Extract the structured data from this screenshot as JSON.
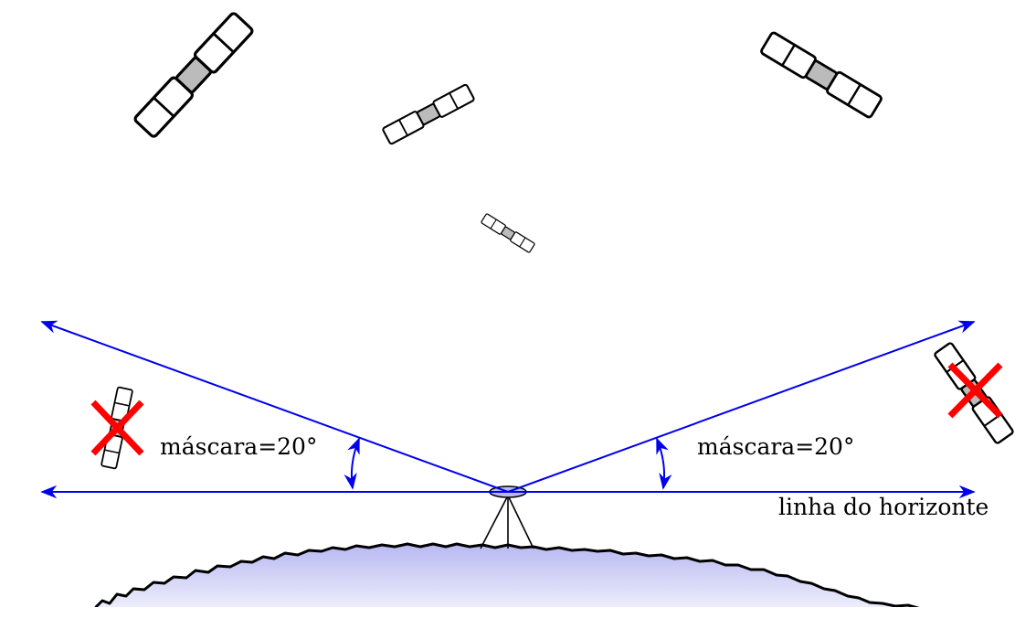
{
  "labels": {
    "mask_left": "máscara=20°",
    "mask_right": "máscara=20°",
    "horizon": "linha do horizonte"
  },
  "colors": {
    "rays": "#0000ee",
    "reject_mark": "#ff0000",
    "ground_fill_top": "#b8b8f2",
    "ground_fill_bottom": "#ffffff",
    "satellite_body": "#bbbbbb",
    "outline": "#000000"
  },
  "icons": {
    "satellite": "satellite-icon",
    "rejected": "red-x-icon",
    "receiver": "gps-antenna-tripod-icon"
  },
  "satellites": [
    {
      "id": "sat-top-left",
      "visible": true
    },
    {
      "id": "sat-top-center",
      "visible": true
    },
    {
      "id": "sat-top-right",
      "visible": true
    },
    {
      "id": "sat-small-center",
      "visible": true
    },
    {
      "id": "sat-low-left",
      "visible": false
    },
    {
      "id": "sat-low-right",
      "visible": false
    }
  ],
  "mask_angle_deg": 20
}
